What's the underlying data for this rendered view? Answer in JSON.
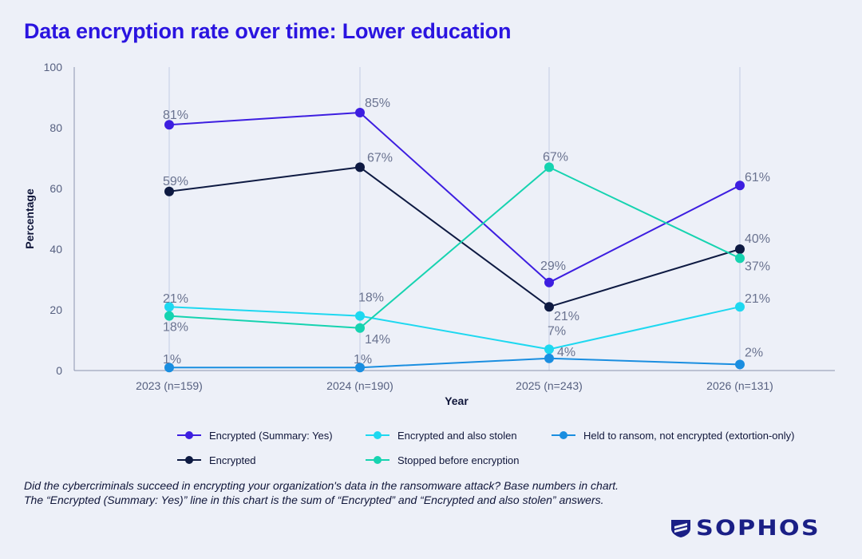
{
  "title": "Data encryption rate over time: Lower education",
  "notes": [
    "Did the cybercriminals succeed in encrypting your organization's data in the ransomware attack? Base numbers in chart.",
    "The “Encrypted (Summary: Yes)” line in this chart is the sum of “Encrypted” and “Encrypted and also stolen” answers."
  ],
  "logo": {
    "text": "SOPHOS",
    "icon": "sophos-shield-icon",
    "color": "#1a1f86"
  },
  "chart_data": {
    "type": "line",
    "xlabel": "Year",
    "ylabel": "Percentage",
    "ylim": [
      0,
      100
    ],
    "yticks": [
      0,
      20,
      40,
      60,
      80,
      100
    ],
    "grid": "vertical",
    "legend_position": "bottom",
    "categories": [
      "2023 (n=159)",
      "2024 (n=190)",
      "2025 (n=243)",
      "2026 (n=131)"
    ],
    "series": [
      {
        "name": "Encrypted (Summary: Yes)",
        "color": "#3d1ee0",
        "values": [
          81,
          85,
          29,
          61
        ],
        "labels": [
          "81%",
          "85%",
          "29%",
          "61%"
        ]
      },
      {
        "name": "Encrypted",
        "color": "#0e1a42",
        "values": [
          59,
          67,
          21,
          40
        ],
        "labels": [
          "59%",
          "67%",
          "21%",
          "40%"
        ]
      },
      {
        "name": "Encrypted and also stolen",
        "color": "#1ed8f0",
        "values": [
          21,
          18,
          7,
          21
        ],
        "labels": [
          "21%",
          "18%",
          "7%",
          "21%"
        ]
      },
      {
        "name": "Stopped before encryption",
        "color": "#16d3b0",
        "values": [
          18,
          14,
          67,
          37
        ],
        "labels": [
          "18%",
          "14%",
          "67%",
          "37%"
        ]
      },
      {
        "name": "Held to ransom, not encrypted (extortion-only)",
        "color": "#1a8ee0",
        "values": [
          1,
          1,
          4,
          2
        ],
        "labels": [
          "1%",
          "1%",
          "4%",
          "2%"
        ]
      }
    ]
  }
}
